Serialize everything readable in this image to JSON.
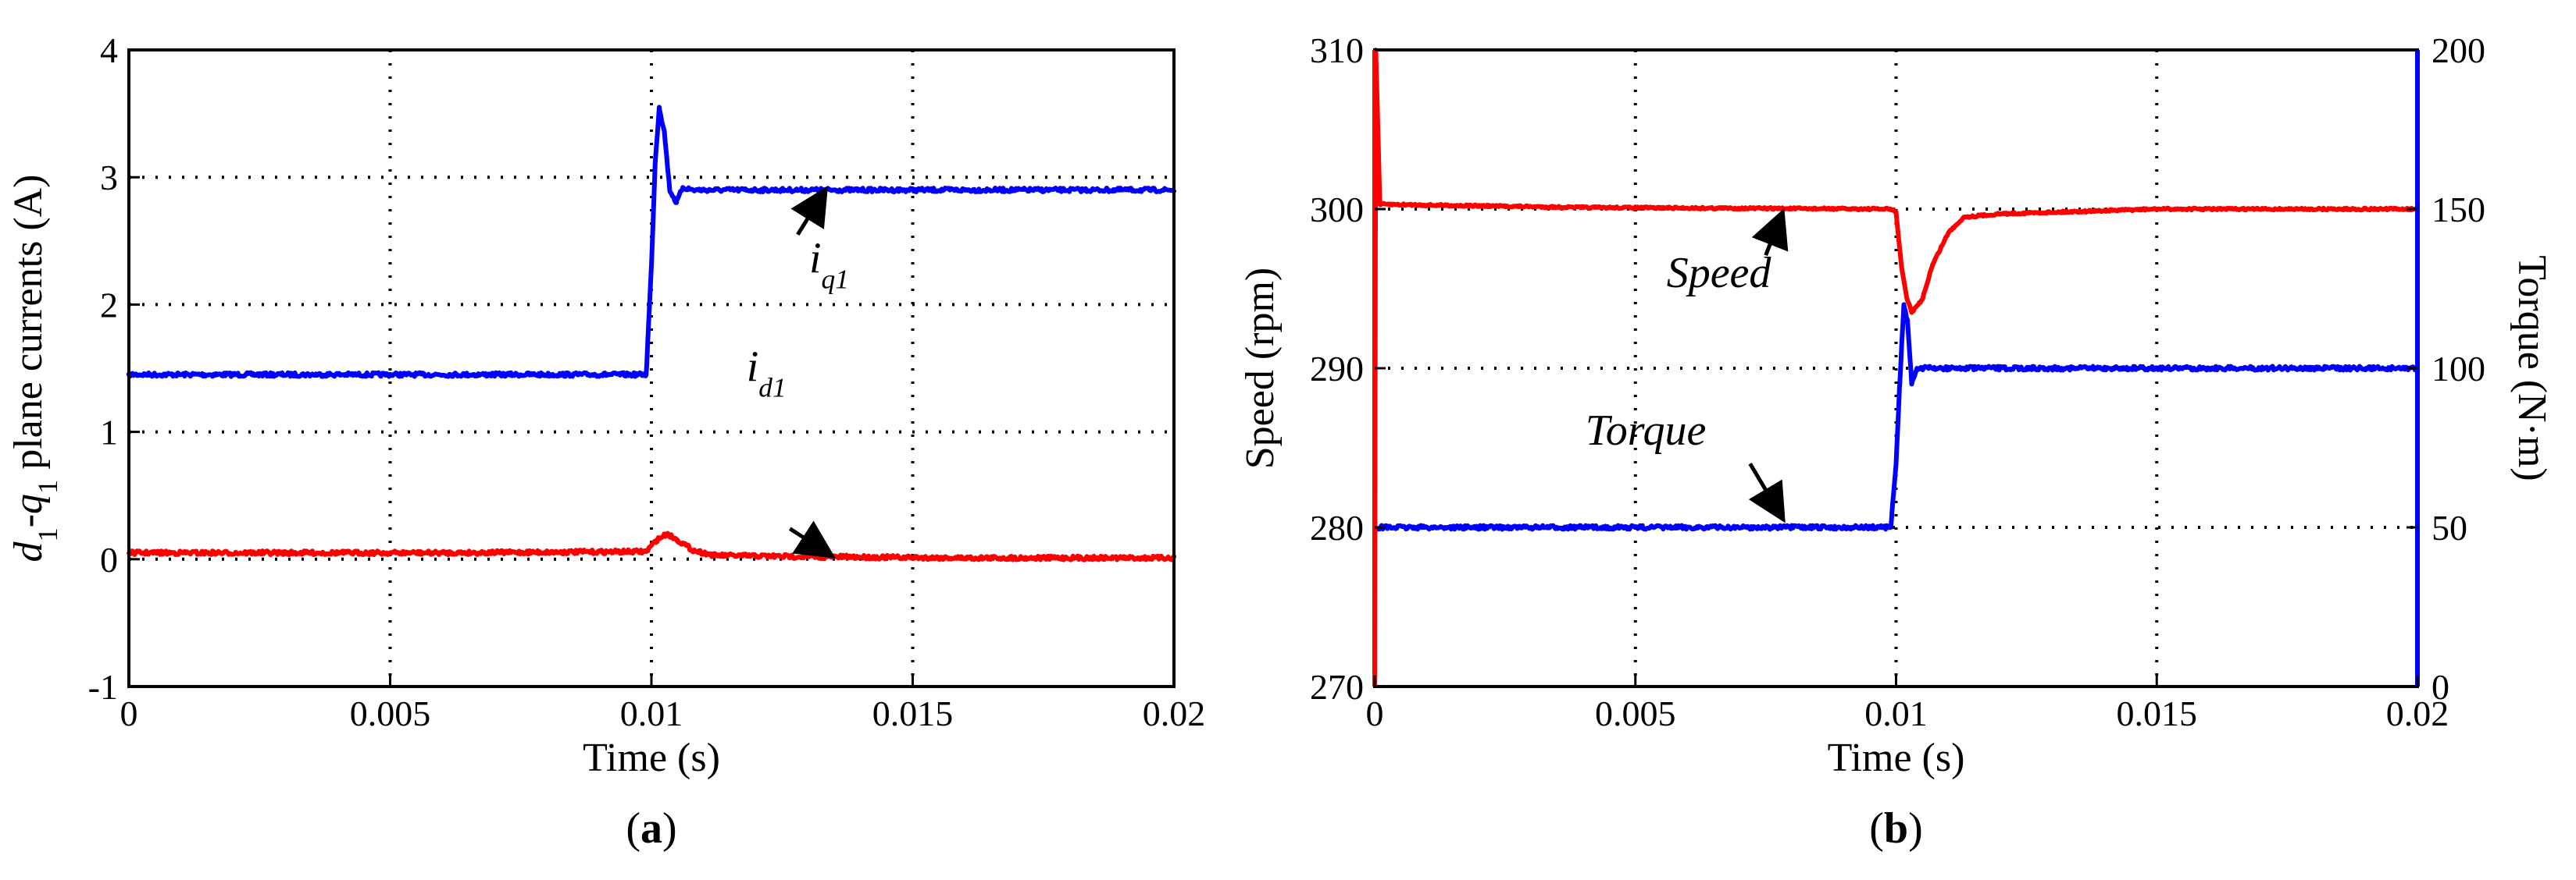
{
  "chart_data": [
    {
      "type": "line",
      "caption": "(a)",
      "xlabel": "Time (s)",
      "ylabel": "d1-q1 plane currents (A)",
      "xlim": [
        0,
        0.02
      ],
      "ylim": [
        -1,
        4
      ],
      "xticks": [
        "0",
        "0.005",
        "0.01",
        "0.015",
        "0.02"
      ],
      "yticks": [
        "-1",
        "0",
        "1",
        "2",
        "3",
        "4"
      ],
      "grid": true,
      "series": [
        {
          "name": "iq1",
          "color": "#0000ff",
          "x": [
            0,
            0.0099,
            0.01,
            0.01007,
            0.01015,
            0.01025,
            0.01035,
            0.01048,
            0.0106,
            0.0108,
            0.0112,
            0.012,
            0.014,
            0.017,
            0.02
          ],
          "y": [
            1.45,
            1.45,
            2.3,
            3.1,
            3.55,
            3.35,
            2.9,
            2.8,
            2.92,
            2.9,
            2.9,
            2.9,
            2.9,
            2.9,
            2.9
          ]
        },
        {
          "name": "id1",
          "color": "#ff0000",
          "x": [
            0,
            0.006,
            0.0099,
            0.0101,
            0.0103,
            0.0105,
            0.0108,
            0.0112,
            0.013,
            0.016,
            0.02
          ],
          "y": [
            0.05,
            0.05,
            0.06,
            0.15,
            0.2,
            0.15,
            0.07,
            0.03,
            0.02,
            0.01,
            0.01
          ]
        }
      ],
      "annotations": [
        {
          "label": "iq1",
          "main": "i",
          "sub": "q1",
          "text_x": 0.0134,
          "text_y": 2.25,
          "arrow_from": [
            0.0128,
            2.55
          ],
          "arrow_to": [
            0.0133,
            2.88
          ]
        },
        {
          "label": "id1",
          "main": "i",
          "sub": "d1",
          "text_x": 0.0122,
          "text_y": 1.4,
          "arrow_from": [
            0.01265,
            0.24
          ],
          "arrow_to": [
            0.0134,
            0.04
          ]
        }
      ]
    },
    {
      "type": "line",
      "caption": "(b)",
      "xlabel": "Time (s)",
      "ylabel": "Speed (rpm)",
      "y2label": "Torque (N·m)",
      "xlim": [
        0,
        0.02
      ],
      "ylim": [
        270,
        310
      ],
      "y2lim": [
        0,
        200
      ],
      "xticks": [
        "0",
        "0.005",
        "0.01",
        "0.015",
        "0.02"
      ],
      "yticks": [
        "270",
        "280",
        "290",
        "300",
        "310"
      ],
      "y2ticks": [
        "0",
        "50",
        "100",
        "150",
        "200"
      ],
      "grid": true,
      "series": [
        {
          "name": "Speed",
          "axis": "left",
          "color": "#ff0000",
          "x": [
            0,
            2e-05,
            0.0001,
            0.004,
            0.0099,
            0.01,
            0.0101,
            0.0102,
            0.0103,
            0.0105,
            0.0107,
            0.011,
            0.0113,
            0.012,
            0.015,
            0.02
          ],
          "y": [
            270,
            310,
            300.3,
            300.1,
            300,
            299.8,
            296.5,
            294.5,
            293.5,
            294.3,
            296.5,
            298.5,
            299.5,
            299.7,
            300,
            300
          ]
        },
        {
          "name": "Torque",
          "axis": "right",
          "color": "#0000ff",
          "x": [
            0,
            0.0099,
            0.01,
            0.01007,
            0.01015,
            0.01022,
            0.0103,
            0.0104,
            0.0105,
            0.0108,
            0.015,
            0.02
          ],
          "y": [
            50,
            50,
            70,
            95,
            120,
            115,
            95,
            100,
            100,
            100,
            100,
            100
          ]
        }
      ],
      "annotations": [
        {
          "label": "Speed",
          "main": "Speed",
          "text_x": 0.0066,
          "text_y": 295.1,
          "arrow_from": [
            0.0075,
            297.1
          ],
          "arrow_to": [
            0.0078,
            299.6
          ]
        },
        {
          "label": "Torque",
          "main": "Torque",
          "text_x": 0.0052,
          "text_y": 285.2,
          "arrow_from": [
            0.0072,
            284.0
          ],
          "arrow_to": [
            0.0078,
            280.7
          ]
        }
      ]
    }
  ]
}
